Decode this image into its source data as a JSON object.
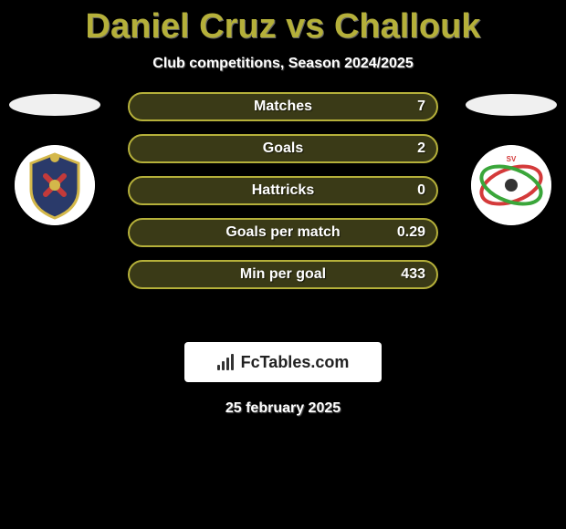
{
  "title": "Daniel Cruz vs Challouk",
  "subtitle": "Club competitions, Season 2024/2025",
  "date": "25 february 2025",
  "colors": {
    "title_color": "#b5b03a",
    "label_color": "#ffffff",
    "value_color": "#ffffff",
    "row_bg": "#3a3a17",
    "row_border": "#b5b03a",
    "ellipse": "#f0f0f0"
  },
  "stats": [
    {
      "label": "Matches",
      "value": "7"
    },
    {
      "label": "Goals",
      "value": "2"
    },
    {
      "label": "Hattricks",
      "value": "0"
    },
    {
      "label": "Goals per match",
      "value": "0.29"
    },
    {
      "label": "Min per goal",
      "value": "433"
    }
  ],
  "brand": "FcTables.com",
  "crest_left": {
    "bg": "#ffffff",
    "inner": "#2a3a6a",
    "accent": "#d4b84a",
    "center": "#c43a3a"
  },
  "crest_right": {
    "bg": "#ffffff",
    "ring1": "#d43a3a",
    "ring2": "#3aa63a"
  }
}
